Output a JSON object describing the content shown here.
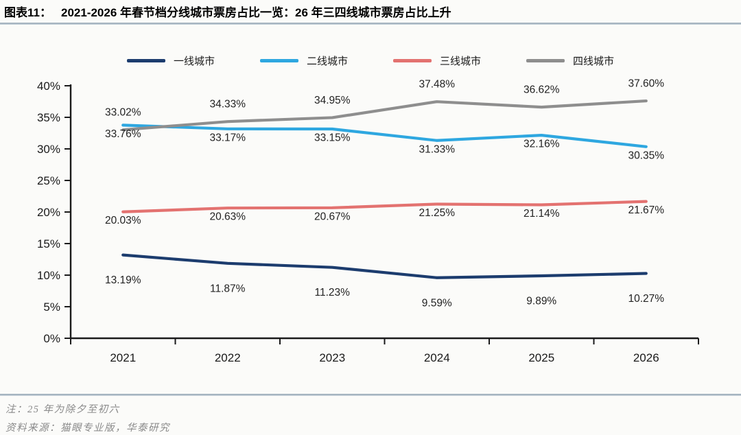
{
  "header": {
    "label": "图表11：",
    "title": "2021-2026 年春节档分线城市票房占比一览：26 年三四线城市票房占比上升"
  },
  "chart_data": {
    "type": "line",
    "title": "2021-2026 年春节档分线城市票房占比一览：26 年三四线城市票房占比上升",
    "x_labels": [
      "2021",
      "2022",
      "2023",
      "2024",
      "2025",
      "2026"
    ],
    "ylim": [
      0,
      40
    ],
    "ytick_step": 5,
    "ytick_labels": [
      "0%",
      "5%",
      "10%",
      "15%",
      "20%",
      "25%",
      "30%",
      "35%",
      "40%"
    ],
    "grid": false,
    "legend_position": "top",
    "axis_color": "#1a1a1a",
    "series": [
      {
        "name": "一线城市",
        "color": "#1c3c6e",
        "values": [
          13.19,
          11.87,
          11.23,
          9.59,
          9.89,
          10.27
        ],
        "labels": [
          "13.19%",
          "11.87%",
          "11.23%",
          "9.59%",
          "9.89%",
          "10.27%"
        ],
        "label_side": "below-far"
      },
      {
        "name": "二线城市",
        "color": "#2ea7e0",
        "values": [
          33.76,
          33.17,
          33.15,
          31.33,
          32.16,
          30.35
        ],
        "labels": [
          "33.76%",
          "33.17%",
          "33.15%",
          "31.33%",
          "32.16%",
          "30.35%"
        ],
        "label_side": "below"
      },
      {
        "name": "三线城市",
        "color": "#e37270",
        "values": [
          20.03,
          20.63,
          20.67,
          21.25,
          21.14,
          21.67
        ],
        "labels": [
          "20.03%",
          "20.63%",
          "20.67%",
          "21.25%",
          "21.14%",
          "21.67%"
        ],
        "label_side": "below"
      },
      {
        "name": "四线城市",
        "color": "#8e8e8e",
        "values": [
          33.02,
          34.33,
          34.95,
          37.48,
          36.62,
          37.6
        ],
        "labels": [
          "33.02%",
          "34.33%",
          "34.95%",
          "37.48%",
          "36.62%",
          "37.60%"
        ],
        "label_side": "above"
      }
    ]
  },
  "footer": {
    "note": "注：25 年为除夕至初六",
    "source": "资料来源：猫眼专业版，华泰研究"
  }
}
